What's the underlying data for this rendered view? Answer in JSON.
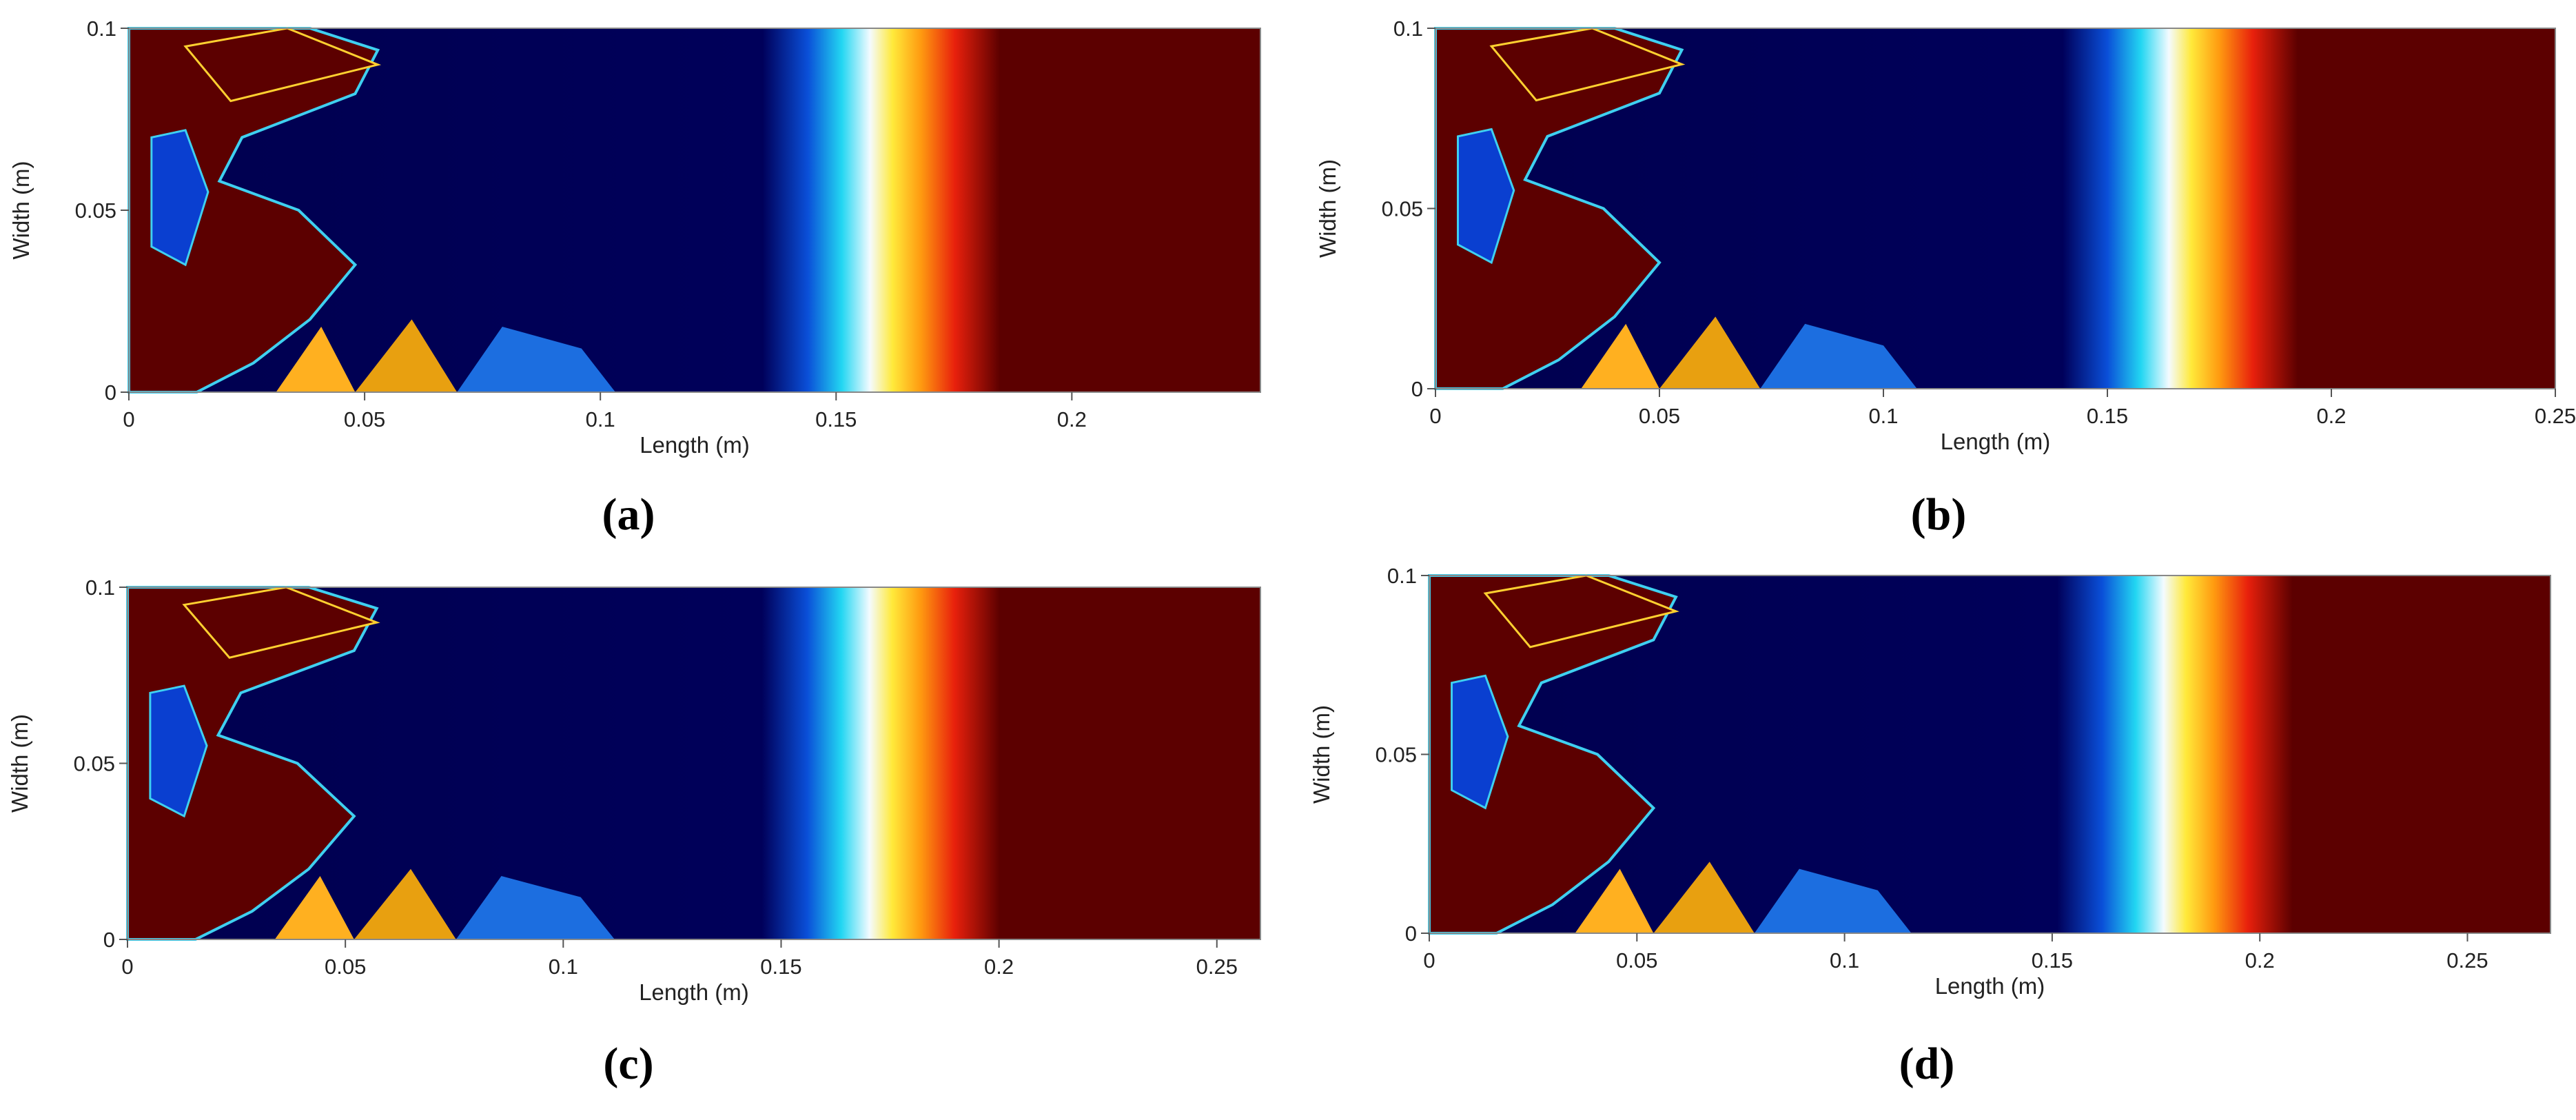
{
  "chart_data": [
    {
      "type": "contour",
      "caption": "(a)",
      "x_label": "Length (m)",
      "y_label": "Width (m)",
      "xlim": [
        0,
        0.24
      ],
      "ylim": [
        0,
        0.1
      ],
      "xticks": [
        0,
        0.05,
        0.1,
        0.15,
        0.2
      ],
      "yticks": [
        0,
        0.05,
        0.1
      ]
    },
    {
      "type": "contour",
      "caption": "(b)",
      "x_label": "Length (m)",
      "y_label": "Width (m)",
      "xlim": [
        0,
        0.25
      ],
      "ylim": [
        0,
        0.1
      ],
      "xticks": [
        0,
        0.05,
        0.1,
        0.15,
        0.2,
        0.25
      ],
      "yticks": [
        0,
        0.05,
        0.1
      ]
    },
    {
      "type": "contour",
      "caption": "(c)",
      "x_label": "Length (m)",
      "y_label": "Width (m)",
      "xlim": [
        0,
        0.26
      ],
      "ylim": [
        0,
        0.1
      ],
      "xticks": [
        0,
        0.05,
        0.1,
        0.15,
        0.2,
        0.25
      ],
      "yticks": [
        0,
        0.05,
        0.1
      ]
    },
    {
      "type": "contour",
      "caption": "(d)",
      "x_label": "Length (m)",
      "y_label": "Width (m)",
      "xlim": [
        0,
        0.27
      ],
      "ylim": [
        0,
        0.1
      ],
      "xticks": [
        0,
        0.05,
        0.1,
        0.15,
        0.2,
        0.25
      ],
      "yticks": [
        0,
        0.05,
        0.1
      ]
    }
  ]
}
